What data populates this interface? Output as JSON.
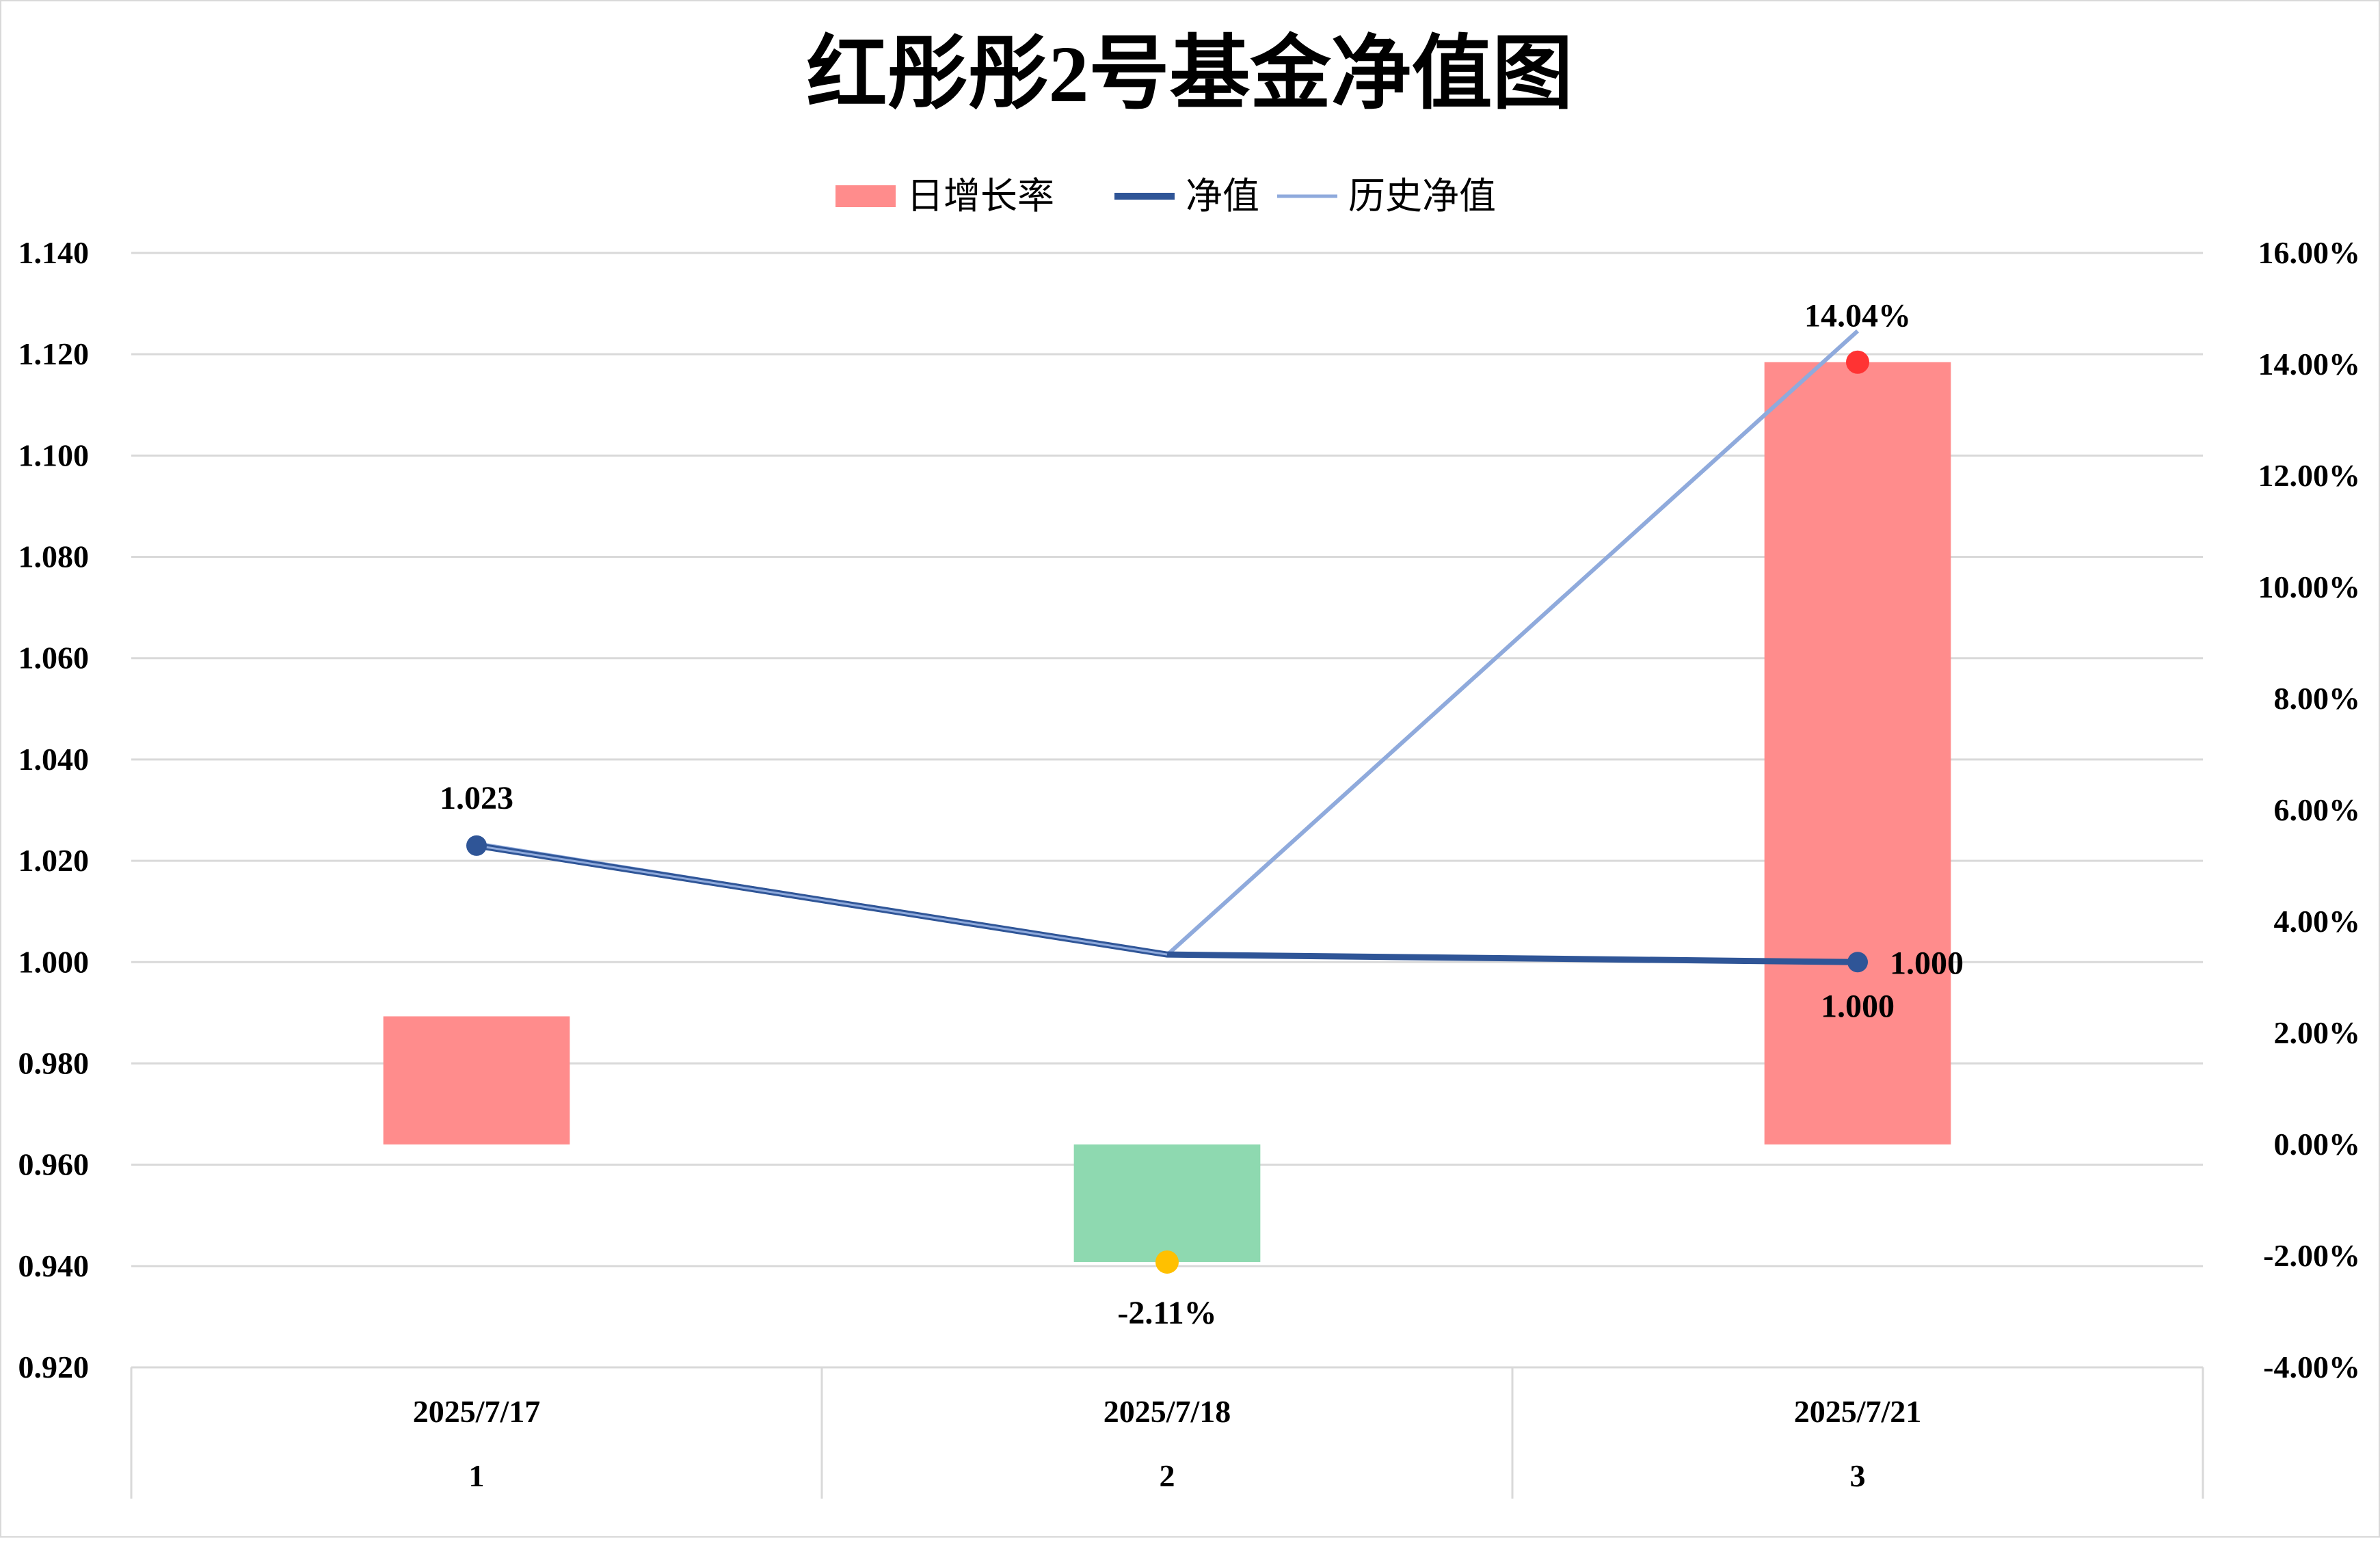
{
  "chart_data": {
    "type": "bar",
    "title": "红彤彤2号基金净值图",
    "legend": {
      "position": "top",
      "items": [
        {
          "label": "日增长率",
          "kind": "bar",
          "color": "#FF8C8C"
        },
        {
          "label": "净值",
          "kind": "line",
          "color": "#2F5597"
        },
        {
          "label": "历史净值",
          "kind": "line",
          "color": "#8FAADC"
        }
      ]
    },
    "categories": [
      {
        "date": "2025/7/17",
        "index": "1"
      },
      {
        "date": "2025/7/18",
        "index": "2"
      },
      {
        "date": "2025/7/21",
        "index": "3"
      }
    ],
    "y_left": {
      "min": 0.92,
      "max": 1.14,
      "step": 0.02,
      "ticks": [
        "0.920",
        "0.940",
        "0.960",
        "0.980",
        "1.000",
        "1.020",
        "1.040",
        "1.060",
        "1.080",
        "1.100",
        "1.120",
        "1.140"
      ]
    },
    "y_right": {
      "min": -4,
      "max": 16,
      "step": 2,
      "unit": "%",
      "ticks": [
        "-4.00%",
        "-2.00%",
        "0.00%",
        "2.00%",
        "4.00%",
        "6.00%",
        "8.00%",
        "10.00%",
        "12.00%",
        "14.00%",
        "16.00%"
      ]
    },
    "grid": true,
    "series": [
      {
        "name": "日增长率",
        "type": "bar",
        "axis": "right",
        "values": [
          2.3,
          -2.11,
          14.04
        ],
        "colors": [
          "#FF8C8C",
          "#8ED9B0",
          "#FF8C8C"
        ],
        "markers": [
          {
            "index": 1,
            "value": -2.11,
            "color": "#FFC000",
            "label": "-2.11%"
          },
          {
            "index": 2,
            "value": 14.04,
            "color": "#FF3333",
            "label": "14.04%"
          }
        ]
      },
      {
        "name": "净值",
        "type": "line",
        "axis": "left",
        "color": "#2F5597",
        "values": [
          1.023,
          1.0015,
          1.0
        ],
        "markers": [
          {
            "index": 0,
            "label": "1.023"
          },
          {
            "index": 2,
            "label": "1.000"
          }
        ],
        "extra_labels": [
          "1.000"
        ]
      },
      {
        "name": "历史净值",
        "type": "line",
        "axis": "right",
        "color": "#8FAADC",
        "values": [
          5.4,
          3.4,
          14.6
        ]
      }
    ]
  }
}
